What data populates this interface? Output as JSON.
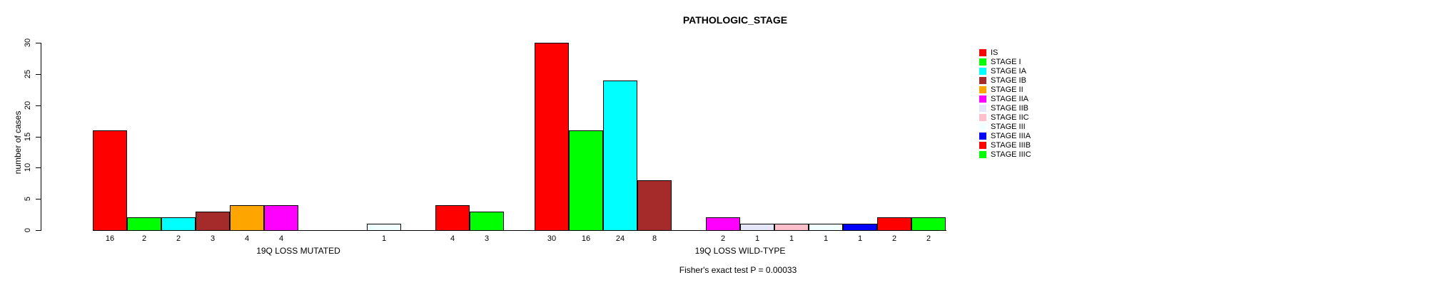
{
  "title": "PATHOLOGIC_STAGE",
  "chart_data": {
    "type": "bar",
    "title": "PATHOLOGIC_STAGE",
    "ylabel": "number of cases",
    "xlabel": "",
    "ylim": [
      0,
      30
    ],
    "yticks": [
      0,
      5,
      10,
      15,
      20,
      25,
      30
    ],
    "grid": false,
    "legend_position": "right",
    "categories": [
      "IS",
      "STAGE I",
      "STAGE IA",
      "STAGE IB",
      "STAGE II",
      "STAGE IIA",
      "STAGE IIB",
      "STAGE IIC",
      "STAGE III",
      "STAGE IIIA",
      "STAGE IIIB",
      "STAGE IIIC"
    ],
    "colors": [
      "#FF0000",
      "#00FF00",
      "#00FFFF",
      "#A52A2A",
      "#FFA500",
      "#FF00FF",
      "#E6E6FA",
      "#FFC0CB",
      "#F0FFFF",
      "#0000FF",
      "#FF0000",
      "#00FF00"
    ],
    "groups": [
      {
        "label": "19Q LOSS MUTATED",
        "values": [
          16,
          2,
          2,
          3,
          4,
          4,
          0,
          0,
          1,
          0,
          4,
          3
        ]
      },
      {
        "label": "19Q LOSS WILD-TYPE",
        "values": [
          30,
          16,
          24,
          8,
          0,
          2,
          1,
          1,
          1,
          1,
          2,
          2
        ]
      }
    ],
    "bar_value_labels_shown": true,
    "annotation": "Fisher's exact test P = 0.00033"
  }
}
